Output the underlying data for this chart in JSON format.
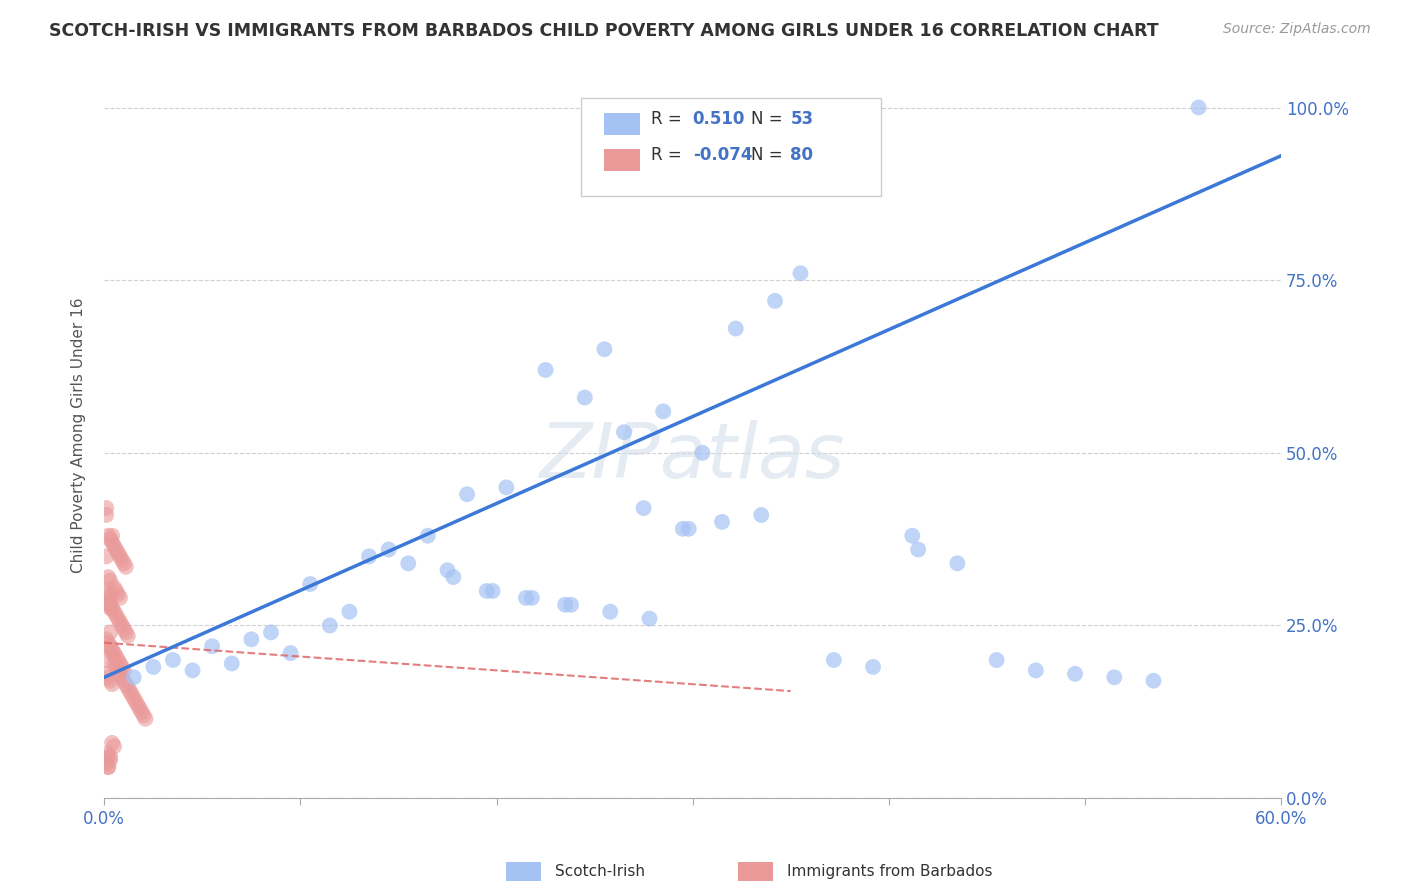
{
  "title": "SCOTCH-IRISH VS IMMIGRANTS FROM BARBADOS CHILD POVERTY AMONG GIRLS UNDER 16 CORRELATION CHART",
  "source": "Source: ZipAtlas.com",
  "ylabel": "Child Poverty Among Girls Under 16",
  "xlim": [
    0.0,
    0.6
  ],
  "ylim": [
    0.0,
    1.05
  ],
  "xticks": [
    0.0,
    0.1,
    0.2,
    0.3,
    0.4,
    0.5,
    0.6
  ],
  "xticklabels": [
    "0.0%",
    "",
    "",
    "",
    "",
    "",
    "60.0%"
  ],
  "ytick_vals": [
    0.0,
    0.25,
    0.5,
    0.75,
    1.0
  ],
  "ytick_labels_right": [
    "0.0%",
    "25.0%",
    "50.0%",
    "75.0%",
    "100.0%"
  ],
  "legend_blue_color": "#a4c2f4",
  "legend_pink_color": "#ea9999",
  "watermark": "ZIPatlas",
  "blue_scatter_color": "#a4c2f4",
  "pink_scatter_color": "#ea9999",
  "blue_line_color": "#3c78d8",
  "pink_line_color": "#e06666",
  "blue_R": 0.51,
  "pink_R": -0.074,
  "blue_N": 53,
  "pink_N": 80,
  "scotch_irish_x": [
    0.322,
    0.342,
    0.255,
    0.285,
    0.305,
    0.185,
    0.095,
    0.065,
    0.045,
    0.015,
    0.135,
    0.155,
    0.175,
    0.195,
    0.215,
    0.235,
    0.115,
    0.125,
    0.145,
    0.165,
    0.025,
    0.035,
    0.055,
    0.075,
    0.085,
    0.105,
    0.275,
    0.295,
    0.315,
    0.335,
    0.355,
    0.265,
    0.245,
    0.225,
    0.205,
    0.415,
    0.435,
    0.455,
    0.475,
    0.495,
    0.515,
    0.535,
    0.558,
    0.372,
    0.392,
    0.412,
    0.178,
    0.198,
    0.218,
    0.238,
    0.258,
    0.278,
    0.298
  ],
  "scotch_irish_y": [
    0.68,
    0.72,
    0.65,
    0.56,
    0.5,
    0.44,
    0.21,
    0.195,
    0.185,
    0.175,
    0.35,
    0.34,
    0.33,
    0.3,
    0.29,
    0.28,
    0.25,
    0.27,
    0.36,
    0.38,
    0.19,
    0.2,
    0.22,
    0.23,
    0.24,
    0.31,
    0.42,
    0.39,
    0.4,
    0.41,
    0.76,
    0.53,
    0.58,
    0.62,
    0.45,
    0.36,
    0.34,
    0.2,
    0.185,
    0.18,
    0.175,
    0.17,
    1.0,
    0.2,
    0.19,
    0.38,
    0.32,
    0.3,
    0.29,
    0.28,
    0.27,
    0.26,
    0.39
  ],
  "barbados_x": [
    0.002,
    0.004,
    0.003,
    0.005,
    0.006,
    0.007,
    0.008,
    0.009,
    0.01,
    0.011,
    0.012,
    0.013,
    0.014,
    0.015,
    0.016,
    0.017,
    0.018,
    0.019,
    0.02,
    0.021,
    0.003,
    0.004,
    0.005,
    0.006,
    0.007,
    0.008,
    0.009,
    0.01,
    0.011,
    0.012,
    0.002,
    0.003,
    0.004,
    0.005,
    0.006,
    0.007,
    0.008,
    0.009,
    0.01,
    0.011,
    0.002,
    0.003,
    0.004,
    0.005,
    0.006,
    0.007,
    0.008,
    0.001,
    0.002,
    0.003,
    0.001,
    0.002,
    0.003,
    0.004,
    0.005,
    0.006,
    0.007,
    0.008,
    0.009,
    0.01,
    0.001,
    0.002,
    0.003,
    0.004,
    0.005,
    0.001,
    0.002,
    0.003,
    0.001,
    0.002,
    0.001,
    0.002,
    0.003,
    0.004,
    0.001,
    0.002,
    0.003,
    0.001,
    0.002,
    0.001
  ],
  "barbados_y": [
    0.22,
    0.21,
    0.24,
    0.195,
    0.19,
    0.185,
    0.18,
    0.175,
    0.17,
    0.165,
    0.16,
    0.155,
    0.15,
    0.145,
    0.14,
    0.135,
    0.13,
    0.125,
    0.12,
    0.115,
    0.28,
    0.275,
    0.27,
    0.265,
    0.26,
    0.255,
    0.25,
    0.245,
    0.24,
    0.235,
    0.32,
    0.315,
    0.38,
    0.365,
    0.36,
    0.355,
    0.35,
    0.345,
    0.34,
    0.335,
    0.38,
    0.375,
    0.37,
    0.305,
    0.3,
    0.295,
    0.29,
    0.285,
    0.28,
    0.275,
    0.23,
    0.225,
    0.22,
    0.215,
    0.21,
    0.205,
    0.2,
    0.195,
    0.19,
    0.185,
    0.41,
    0.06,
    0.055,
    0.08,
    0.075,
    0.35,
    0.065,
    0.06,
    0.42,
    0.045,
    0.18,
    0.175,
    0.17,
    0.165,
    0.3,
    0.295,
    0.29,
    0.05,
    0.045,
    0.2
  ],
  "grid_color": "#d0d0d0",
  "spine_color": "#aaaaaa",
  "tick_color": "#4472c4",
  "text_color": "#555555"
}
